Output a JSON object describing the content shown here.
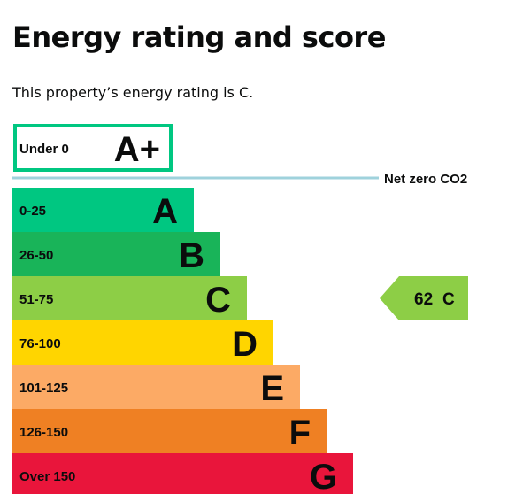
{
  "header": {
    "title": "Energy rating and score",
    "subtitle": "This property’s energy rating is C."
  },
  "colors": {
    "text": "#0b0c0c",
    "netzero_line": "#9fd2dc",
    "aplus_border": "#00c781"
  },
  "chart_data": {
    "type": "bar",
    "categories": [
      "A+",
      "A",
      "B",
      "C",
      "D",
      "E",
      "F",
      "G"
    ],
    "bands": [
      {
        "letter": "A+",
        "range": "Under 0",
        "color": "#00c781",
        "outline": true
      },
      {
        "letter": "A",
        "range": "0-25",
        "color": "#00c781",
        "outline": false
      },
      {
        "letter": "B",
        "range": "26-50",
        "color": "#19b459",
        "outline": false
      },
      {
        "letter": "C",
        "range": "51-75",
        "color": "#8dce46",
        "outline": false
      },
      {
        "letter": "D",
        "range": "76-100",
        "color": "#ffd500",
        "outline": false
      },
      {
        "letter": "E",
        "range": "101-125",
        "color": "#fcaa65",
        "outline": false
      },
      {
        "letter": "F",
        "range": "126-150",
        "color": "#ef8023",
        "outline": false
      },
      {
        "letter": "G",
        "range": "Over 150",
        "color": "#e9153b",
        "outline": false
      }
    ],
    "net_zero_label": "Net zero CO2",
    "current": {
      "score": "62",
      "rating": "C",
      "color": "#8dce46"
    }
  }
}
